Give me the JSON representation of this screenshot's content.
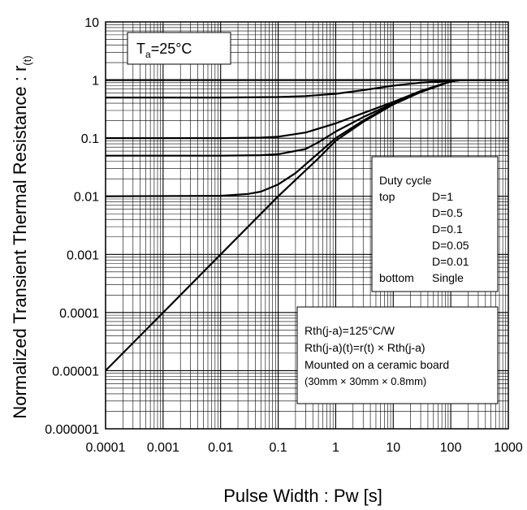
{
  "chart_data": {
    "type": "line",
    "title": "",
    "xlabel": "Pulse Width : Pw [s]",
    "ylabel_main": "Normalized Transient Thermal Resistance : r",
    "ylabel_sub": "(t)",
    "x_scale": "log",
    "y_scale": "log",
    "xlim": [
      0.0001,
      1000
    ],
    "ylim": [
      1e-06,
      10
    ],
    "grid": true,
    "x_ticks": [
      "0.0001",
      "0.001",
      "0.01",
      "0.1",
      "1",
      "10",
      "100",
      "1000"
    ],
    "y_ticks": [
      "0.000001",
      "0.00001",
      "0.0001",
      "0.001",
      "0.01",
      "0.1",
      "1",
      "10"
    ],
    "ambient": {
      "main": "T",
      "sub": "a",
      "rest": "=25°C"
    },
    "legend": {
      "title": "Duty cycle",
      "top_label": "top",
      "bottom_label": "bottom",
      "entries": [
        "D=1",
        "D=0.5",
        "D=0.1",
        "D=0.05",
        "D=0.01",
        "Single"
      ]
    },
    "notes": [
      "Rth(j-a)=125°C/W",
      "Rth(j-a)(t)=r(t) × Rth(j-a)",
      "Mounted on a ceramic board",
      "(30mm × 30mm × 0.8mm)"
    ],
    "series": [
      {
        "name": "D=1",
        "points": [
          [
            0.0001,
            1
          ],
          [
            1000,
            1
          ]
        ]
      },
      {
        "name": "D=0.5",
        "points": [
          [
            0.0001,
            0.5
          ],
          [
            0.01,
            0.5
          ],
          [
            0.1,
            0.51
          ],
          [
            0.3,
            0.53
          ],
          [
            1,
            0.58
          ],
          [
            3,
            0.67
          ],
          [
            10,
            0.8
          ],
          [
            30,
            0.9
          ],
          [
            100,
            0.97
          ],
          [
            150,
            1
          ],
          [
            1000,
            1
          ]
        ]
      },
      {
        "name": "D=0.1",
        "points": [
          [
            0.0001,
            0.1
          ],
          [
            0.01,
            0.1
          ],
          [
            0.05,
            0.102
          ],
          [
            0.1,
            0.106
          ],
          [
            0.3,
            0.125
          ],
          [
            1,
            0.18
          ],
          [
            3,
            0.27
          ],
          [
            10,
            0.42
          ],
          [
            30,
            0.65
          ],
          [
            100,
            0.95
          ],
          [
            150,
            1
          ],
          [
            1000,
            1
          ]
        ]
      },
      {
        "name": "D=0.05",
        "points": [
          [
            0.0001,
            0.05
          ],
          [
            0.01,
            0.05
          ],
          [
            0.05,
            0.051
          ],
          [
            0.1,
            0.053
          ],
          [
            0.3,
            0.065
          ],
          [
            0.5,
            0.085
          ],
          [
            1,
            0.13
          ],
          [
            3,
            0.23
          ],
          [
            10,
            0.4
          ],
          [
            30,
            0.63
          ],
          [
            100,
            0.95
          ],
          [
            150,
            1
          ],
          [
            1000,
            1
          ]
        ]
      },
      {
        "name": "D=0.01",
        "points": [
          [
            0.0001,
            0.01
          ],
          [
            0.01,
            0.0102
          ],
          [
            0.03,
            0.011
          ],
          [
            0.05,
            0.012
          ],
          [
            0.1,
            0.016
          ],
          [
            0.2,
            0.025
          ],
          [
            0.5,
            0.055
          ],
          [
            1,
            0.1
          ],
          [
            3,
            0.2
          ],
          [
            10,
            0.39
          ],
          [
            30,
            0.62
          ],
          [
            100,
            0.95
          ],
          [
            150,
            1
          ],
          [
            1000,
            1
          ]
        ]
      },
      {
        "name": "Single",
        "points": [
          [
            0.0001,
            1e-05
          ],
          [
            0.001,
            0.0001
          ],
          [
            0.01,
            0.001
          ],
          [
            0.1,
            0.01
          ],
          [
            0.5,
            0.045
          ],
          [
            1,
            0.09
          ],
          [
            3,
            0.19
          ],
          [
            10,
            0.38
          ],
          [
            30,
            0.62
          ],
          [
            100,
            0.95
          ],
          [
            150,
            1
          ],
          [
            1000,
            1
          ]
        ]
      }
    ]
  }
}
